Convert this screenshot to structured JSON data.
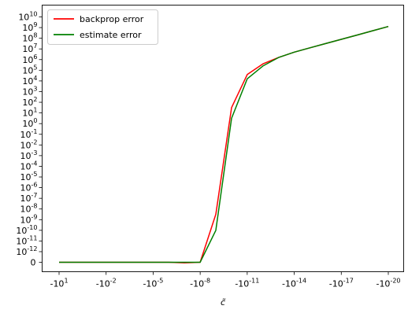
{
  "chart_data": {
    "type": "line",
    "title": "",
    "xlabel": "c̃",
    "ylabel": "",
    "x_scale": "log (negative values, magnitude decreasing left to right)",
    "y_scale": "symlog (linear near zero)",
    "x_ticks": [
      "-10^1",
      "-10^-2",
      "-10^-5",
      "-10^-8",
      "-10^-11",
      "-10^-14",
      "-10^-17",
      "-10^-20"
    ],
    "x_tick_exponents": [
      1,
      -2,
      -5,
      -8,
      -11,
      -14,
      -17,
      -20
    ],
    "xlim": [
      "-10^1",
      "-10^-20"
    ],
    "y_ticks": [
      "0",
      "10^-12",
      "10^-11",
      "10^-10",
      "10^-9",
      "10^-8",
      "10^-7",
      "10^-6",
      "10^-5",
      "10^-4",
      "10^-3",
      "10^-2",
      "10^-1",
      "10^0",
      "10^1",
      "10^2",
      "10^3",
      "10^4",
      "10^5",
      "10^6",
      "10^7",
      "10^8",
      "10^9",
      "10^10"
    ],
    "y_tick_exponents": [
      null,
      -12,
      -11,
      -10,
      -9,
      -8,
      -7,
      -6,
      -5,
      -4,
      -3,
      -2,
      -1,
      0,
      1,
      2,
      3,
      4,
      5,
      6,
      7,
      8,
      9,
      10
    ],
    "ylim": [
      0,
      "10^10.2"
    ],
    "grid": false,
    "legend": "top-left",
    "x_log10_magnitude": [
      1,
      0,
      -1,
      -2,
      -3,
      -4,
      -5,
      -6,
      -7,
      -8,
      -9,
      -10,
      -11,
      -12,
      -13,
      -14,
      -15,
      -16,
      -17,
      -18,
      -19,
      -20
    ],
    "series": [
      {
        "name": "backprop error",
        "color": "#ff0000",
        "y_log10": [
          null,
          null,
          null,
          null,
          null,
          null,
          null,
          null,
          -13.05,
          null,
          -8.5,
          1.5,
          4.6,
          5.6,
          6.2,
          6.7,
          7.1,
          7.5,
          7.9,
          8.3,
          8.7,
          9.1
        ],
        "zero_points": [
          0,
          1,
          2,
          3,
          4,
          5,
          6,
          7,
          9
        ]
      },
      {
        "name": "estimate error",
        "color": "#008000",
        "y_log10": [
          null,
          null,
          null,
          null,
          null,
          null,
          null,
          null,
          null,
          null,
          -10.0,
          0.5,
          4.2,
          5.4,
          6.2,
          6.7,
          7.1,
          7.5,
          7.9,
          8.3,
          8.7,
          9.1
        ],
        "zero_points": [
          0,
          1,
          2,
          3,
          4,
          5,
          6,
          7,
          8,
          9
        ]
      }
    ]
  }
}
